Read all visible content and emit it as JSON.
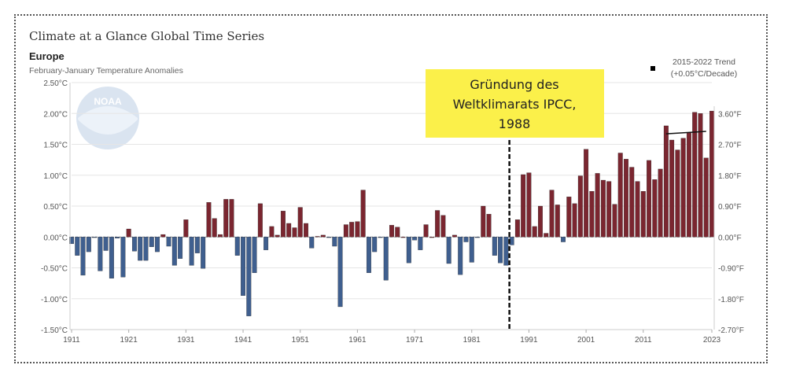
{
  "chart_data": {
    "type": "bar",
    "title": "Climate at a Glance Global Time Series",
    "region": "Europe",
    "subtitle": "February-January Temperature Anomalies",
    "xlabel": "",
    "ylabel": "",
    "x_start": 1911,
    "x_end": 2023,
    "ylim": [
      -1.5,
      2.5
    ],
    "y_ticks": [
      "2.50°C",
      "2.00°C",
      "1.50°C",
      "1.00°C",
      "0.50°C",
      "0.00°C",
      "-0.50°C",
      "-1.00°C",
      "-1.50°C"
    ],
    "y_tick_values": [
      2.5,
      2.0,
      1.5,
      1.0,
      0.5,
      0.0,
      -0.5,
      -1.0,
      -1.5
    ],
    "y2_ticks": [
      "3.60°F",
      "2.70°F",
      "1.80°F",
      "0.90°F",
      "0.00°F",
      "-0.90°F",
      "-1.80°F",
      "-2.70°F"
    ],
    "y2_tick_values_c": [
      2.0,
      1.5,
      1.0,
      0.5,
      0.0,
      -0.5,
      -1.0,
      -1.5
    ],
    "x_ticks": [
      "1911",
      "1921",
      "1931",
      "1941",
      "1951",
      "1961",
      "1971",
      "1981",
      "1991",
      "2001",
      "2011",
      "2023"
    ],
    "x_tick_years": [
      1911,
      1921,
      1931,
      1941,
      1951,
      1961,
      1971,
      1981,
      1991,
      2001,
      2011,
      2023
    ],
    "values": [
      -0.11,
      -0.3,
      -0.62,
      -0.24,
      -0.01,
      -0.55,
      -0.22,
      -0.67,
      -0.02,
      -0.65,
      0.13,
      -0.23,
      -0.38,
      -0.38,
      -0.16,
      -0.24,
      0.04,
      -0.15,
      -0.46,
      -0.35,
      0.28,
      -0.46,
      -0.26,
      -0.51,
      0.56,
      0.3,
      0.04,
      0.61,
      0.61,
      -0.3,
      -0.95,
      -1.28,
      -0.58,
      0.54,
      -0.21,
      0.17,
      0.03,
      0.42,
      0.22,
      0.15,
      0.48,
      0.22,
      -0.18,
      0.01,
      0.03,
      -0.01,
      -0.15,
      -1.13,
      0.2,
      0.24,
      0.25,
      0.76,
      -0.58,
      -0.24,
      -0.01,
      -0.7,
      0.19,
      0.16,
      0,
      -0.42,
      -0.05,
      -0.21,
      0.2,
      0,
      0.43,
      0.35,
      -0.43,
      0.03,
      -0.61,
      -0.08,
      -0.41,
      -0.01,
      0.5,
      0.37,
      -0.3,
      -0.42,
      -0.46,
      -0.13,
      0.28,
      1.01,
      1.04,
      0.17,
      0.5,
      0.06,
      0.76,
      0.52,
      -0.08,
      0.65,
      0.54,
      0.99,
      1.42,
      0.74,
      1.03,
      0.92,
      0.9,
      0.53,
      1.36,
      1.26,
      1.13,
      0.9,
      0.74,
      1.24,
      0.93,
      1.1,
      1.8,
      1.57,
      1.41,
      1.6,
      1.69,
      2.02,
      2.0,
      1.28,
      2.04
    ],
    "colors": {
      "positive": "#7b2630",
      "negative": "#3f5f8f"
    },
    "trend": {
      "label": "2015-2022 Trend",
      "rate": "(+0.05°C/Decade)",
      "start_year": 2015,
      "end_year": 2022,
      "start_value": 1.67,
      "end_value": 1.71
    },
    "annotation": {
      "lines": [
        "Gründung des",
        "Weltklimarats IPCC,",
        "1988"
      ],
      "year": 1988,
      "color": "#fbf04a"
    },
    "logo_text": "NOAA"
  }
}
